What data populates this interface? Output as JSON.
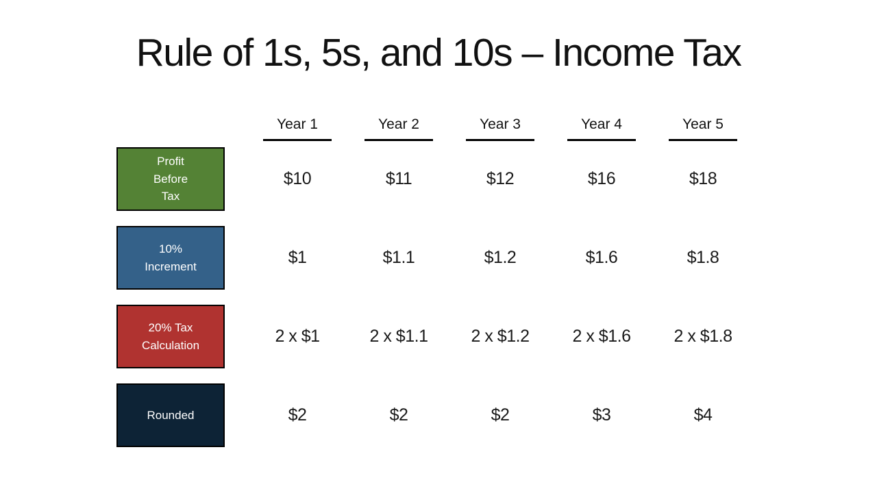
{
  "slide": {
    "title": "Rule of 1s, 5s, and 10s – Income Tax",
    "background_color": "#ffffff",
    "title_color": "#111111",
    "underline_color": "#000000"
  },
  "table": {
    "columns": [
      "Year 1",
      "Year 2",
      "Year 3",
      "Year 4",
      "Year 5"
    ],
    "rows": [
      {
        "label": "Profit\nBefore\nTax",
        "color": "#548235",
        "values": [
          "$10",
          "$11",
          "$12",
          "$16",
          "$18"
        ]
      },
      {
        "label": "10%\nIncrement",
        "color": "#346189",
        "values": [
          "$1",
          "$1.1",
          "$1.2",
          "$1.6",
          "$1.8"
        ]
      },
      {
        "label": "20% Tax\nCalculation",
        "color": "#B03330",
        "values": [
          "2 x $1",
          "2 x $1.1",
          "2 x $1.2",
          "2 x $1.6",
          "2 x $1.8"
        ]
      },
      {
        "label": "Rounded",
        "color": "#0D2336",
        "values": [
          "$2",
          "$2",
          "$2",
          "$3",
          "$4"
        ]
      }
    ]
  }
}
